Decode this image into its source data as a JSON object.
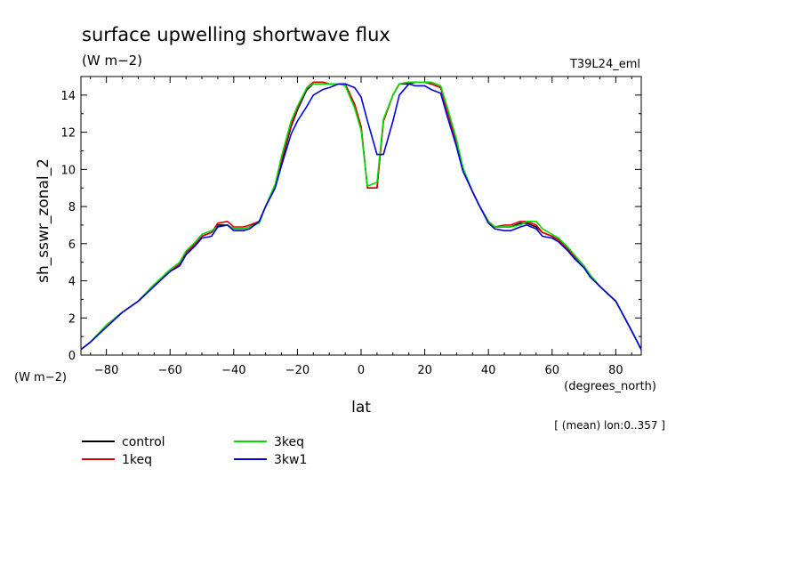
{
  "chart_data": {
    "type": "line",
    "title": "surface upwelling shortwave flux",
    "subtitle": "(W m−2)",
    "run_label": "T39L24_eml",
    "ylabel": "sh_sswr_zonal_2",
    "yunits": "(W m−2)",
    "xlabel": "lat",
    "xunits": "(degrees_north)",
    "note": "[ (mean) lon:0..357 ]",
    "xlim": [
      -88,
      88
    ],
    "ylim": [
      0,
      15
    ],
    "xticks": [
      -80,
      -60,
      -40,
      -20,
      0,
      20,
      40,
      60,
      80
    ],
    "yticks": [
      0,
      2,
      4,
      6,
      8,
      10,
      12,
      14
    ],
    "grid": false,
    "legend_position": "bottom-left",
    "x": [
      -88,
      -85,
      -80,
      -75,
      -70,
      -65,
      -60,
      -57,
      -55,
      -52,
      -50,
      -47,
      -45,
      -42,
      -40,
      -37,
      -35,
      -32,
      -30,
      -27,
      -25,
      -22,
      -20,
      -17,
      -15,
      -12,
      -10,
      -7,
      -5,
      -2,
      0,
      2,
      5,
      7,
      10,
      12,
      15,
      17,
      20,
      22,
      25,
      27,
      30,
      32,
      35,
      37,
      40,
      42,
      45,
      47,
      50,
      52,
      55,
      57,
      60,
      62,
      65,
      67,
      70,
      72,
      75,
      80,
      85,
      88
    ],
    "series": [
      {
        "name": "control",
        "color": "#000000",
        "values": [
          0.3,
          0.7,
          1.6,
          2.3,
          2.9,
          3.8,
          4.5,
          4.9,
          5.5,
          6.0,
          6.4,
          6.6,
          7.0,
          7.0,
          6.8,
          6.8,
          6.9,
          7.2,
          8.0,
          9.1,
          10.4,
          12.3,
          13.2,
          14.3,
          14.6,
          14.6,
          14.6,
          14.6,
          14.6,
          13.5,
          12.3,
          9.0,
          9.0,
          12.6,
          14.0,
          14.6,
          14.6,
          14.7,
          14.7,
          14.6,
          14.4,
          13.2,
          11.4,
          10.0,
          8.8,
          8.1,
          7.2,
          6.9,
          6.9,
          6.9,
          7.1,
          7.1,
          6.9,
          6.6,
          6.4,
          6.2,
          5.7,
          5.3,
          4.8,
          4.3,
          3.7,
          2.9,
          1.3,
          0.3
        ]
      },
      {
        "name": "1keq",
        "color": "#e00000",
        "values": [
          0.3,
          0.7,
          1.6,
          2.3,
          2.9,
          3.8,
          4.5,
          4.9,
          5.5,
          6.0,
          6.4,
          6.6,
          7.1,
          7.2,
          6.9,
          6.9,
          7.0,
          7.2,
          8.0,
          9.1,
          10.5,
          12.4,
          13.3,
          14.4,
          14.7,
          14.7,
          14.6,
          14.6,
          14.6,
          13.5,
          12.3,
          9.0,
          9.0,
          12.6,
          14.0,
          14.6,
          14.7,
          14.7,
          14.7,
          14.6,
          14.4,
          13.2,
          11.4,
          10.0,
          8.8,
          8.1,
          7.2,
          6.9,
          7.0,
          7.0,
          7.2,
          7.2,
          7.0,
          6.6,
          6.4,
          6.2,
          5.7,
          5.3,
          4.8,
          4.3,
          3.7,
          2.9,
          1.3,
          0.3
        ]
      },
      {
        "name": "3keq",
        "color": "#00dd00",
        "values": [
          0.3,
          0.7,
          1.6,
          2.3,
          2.9,
          3.8,
          4.6,
          5.0,
          5.6,
          6.1,
          6.5,
          6.7,
          6.9,
          7.0,
          6.8,
          6.8,
          6.9,
          7.1,
          8.0,
          9.2,
          10.7,
          12.6,
          13.4,
          14.4,
          14.6,
          14.6,
          14.6,
          14.6,
          14.5,
          13.3,
          12.1,
          9.1,
          9.3,
          12.7,
          14.0,
          14.6,
          14.7,
          14.7,
          14.7,
          14.7,
          14.5,
          13.4,
          11.6,
          10.1,
          8.8,
          8.1,
          7.2,
          6.9,
          6.9,
          6.9,
          7.0,
          7.2,
          7.2,
          6.8,
          6.5,
          6.3,
          5.8,
          5.4,
          4.8,
          4.3,
          3.7,
          2.9,
          1.3,
          0.3
        ]
      },
      {
        "name": "3kw1",
        "color": "#0000dd",
        "values": [
          0.3,
          0.7,
          1.5,
          2.3,
          2.9,
          3.7,
          4.5,
          4.8,
          5.4,
          5.9,
          6.3,
          6.4,
          6.9,
          7.0,
          6.7,
          6.7,
          6.8,
          7.2,
          8.0,
          9.0,
          10.2,
          11.9,
          12.6,
          13.4,
          14.0,
          14.3,
          14.4,
          14.6,
          14.6,
          14.4,
          13.9,
          12.6,
          10.8,
          10.8,
          12.6,
          14.0,
          14.6,
          14.5,
          14.5,
          14.3,
          14.1,
          12.9,
          11.2,
          9.9,
          8.8,
          8.1,
          7.1,
          6.8,
          6.7,
          6.7,
          6.9,
          7.0,
          6.8,
          6.4,
          6.3,
          6.1,
          5.6,
          5.2,
          4.7,
          4.2,
          3.7,
          2.9,
          1.3,
          0.3
        ]
      }
    ]
  }
}
